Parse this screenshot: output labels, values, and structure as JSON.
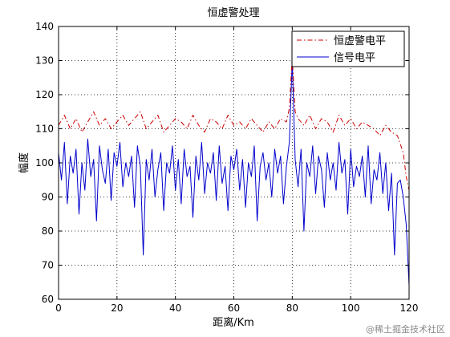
{
  "chart_data": {
    "type": "line",
    "title": "恒虚警处理",
    "xlabel": "距离/Km",
    "ylabel": "幅度",
    "xlim": [
      0,
      120
    ],
    "ylim": [
      60,
      140
    ],
    "xticks": [
      0,
      20,
      40,
      60,
      80,
      100,
      120
    ],
    "yticks": [
      60,
      70,
      80,
      90,
      100,
      110,
      120,
      130,
      140
    ],
    "grid": true,
    "legend_position": "top-right",
    "series": [
      {
        "name": "恒虚警电平",
        "color": "#cc0000",
        "style": "dash-dot",
        "x": [
          0,
          2,
          4,
          6,
          8,
          10,
          12,
          14,
          16,
          18,
          20,
          22,
          24,
          26,
          28,
          30,
          32,
          34,
          36,
          38,
          40,
          42,
          44,
          46,
          48,
          50,
          52,
          54,
          56,
          58,
          60,
          62,
          64,
          66,
          68,
          70,
          72,
          74,
          76,
          78,
          79,
          80,
          81,
          82,
          84,
          86,
          88,
          90,
          92,
          94,
          96,
          98,
          100,
          102,
          104,
          106,
          108,
          110,
          112,
          114,
          116,
          118,
          119,
          120
        ],
        "values": [
          111,
          114,
          110,
          113,
          109,
          112,
          115,
          111,
          113,
          110,
          112,
          114,
          111,
          113,
          115,
          110,
          112,
          114,
          109,
          111,
          113,
          112,
          110,
          114,
          111,
          109,
          113,
          112,
          110,
          114,
          111,
          112,
          110,
          113,
          111,
          109,
          112,
          110,
          113,
          112,
          116,
          131,
          115,
          113,
          111,
          114,
          110,
          113,
          112,
          109,
          114,
          111,
          113,
          110,
          112,
          111,
          110,
          108,
          111,
          109,
          108,
          103,
          96,
          92
        ]
      },
      {
        "name": "信号电平",
        "color": "#0000cc",
        "style": "solid",
        "x": [
          0,
          1,
          2,
          3,
          4,
          5,
          6,
          7,
          8,
          9,
          10,
          11,
          12,
          13,
          14,
          15,
          16,
          17,
          18,
          19,
          20,
          21,
          22,
          23,
          24,
          25,
          26,
          27,
          28,
          29,
          30,
          31,
          32,
          33,
          34,
          35,
          36,
          37,
          38,
          39,
          40,
          41,
          42,
          43,
          44,
          45,
          46,
          47,
          48,
          49,
          50,
          51,
          52,
          53,
          54,
          55,
          56,
          57,
          58,
          59,
          60,
          61,
          62,
          63,
          64,
          65,
          66,
          67,
          68,
          69,
          70,
          71,
          72,
          73,
          74,
          75,
          76,
          77,
          78,
          79,
          80,
          81,
          82,
          83,
          84,
          85,
          86,
          87,
          88,
          89,
          90,
          91,
          92,
          93,
          94,
          95,
          96,
          97,
          98,
          99,
          100,
          101,
          102,
          103,
          104,
          105,
          106,
          107,
          108,
          109,
          110,
          111,
          112,
          113,
          114,
          115,
          116,
          117,
          118,
          119,
          120
        ],
        "values": [
          103,
          95,
          106,
          88,
          102,
          97,
          104,
          85,
          100,
          92,
          107,
          96,
          101,
          83,
          105,
          98,
          94,
          104,
          89,
          103,
          99,
          106,
          93,
          100,
          96,
          102,
          87,
          105,
          99,
          73,
          101,
          95,
          104,
          90,
          98,
          103,
          86,
          100,
          97,
          105,
          92,
          101,
          88,
          104,
          96,
          99,
          84,
          102,
          95,
          106,
          91,
          100,
          97,
          103,
          89,
          105,
          94,
          99,
          86,
          102,
          98,
          104,
          92,
          101,
          87,
          100,
          96,
          105,
          83,
          99,
          103,
          95,
          100,
          90,
          104,
          97,
          102,
          88,
          99,
          106,
          130,
          101,
          93,
          104,
          80,
          100,
          96,
          105,
          91,
          102,
          98,
          87,
          103,
          95,
          100,
          92,
          106,
          97,
          101,
          85,
          104,
          93,
          99,
          96,
          102,
          90,
          105,
          88,
          98,
          95,
          103,
          91,
          100,
          86,
          97,
          73,
          94,
          95,
          90,
          82,
          64
        ]
      }
    ]
  },
  "watermark": "@稀土掘金技术社区"
}
